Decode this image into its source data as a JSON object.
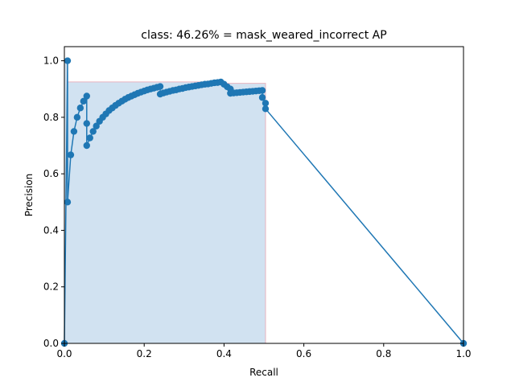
{
  "chart_data": {
    "type": "line",
    "title": "class: 46.26% = mask_weared_incorrect AP",
    "xlabel": "Recall",
    "ylabel": "Precision",
    "xlim": [
      0,
      1
    ],
    "ylim": [
      0,
      1.05
    ],
    "x_ticks": [
      "0.0",
      "0.2",
      "0.4",
      "0.6",
      "0.8",
      "1.0"
    ],
    "y_ticks": [
      "0.0",
      "0.2",
      "0.4",
      "0.6",
      "0.8",
      "1.0"
    ],
    "grid": false,
    "legend": "none",
    "colors": {
      "line": "#1f77b4",
      "fill": "#b9d3ea",
      "fill_edge": "#e8b4bf"
    },
    "series": [
      {
        "x": [
          0.0,
          0.008,
          0.008,
          0.016,
          0.024,
          0.032,
          0.04,
          0.048,
          0.056,
          0.056,
          0.056,
          0.064,
          0.072,
          0.08,
          0.088,
          0.096,
          0.104,
          0.112,
          0.12,
          0.128,
          0.136,
          0.144,
          0.152,
          0.16,
          0.168,
          0.176,
          0.184,
          0.192,
          0.2,
          0.208,
          0.216,
          0.224,
          0.232,
          0.24,
          0.24,
          0.248,
          0.256,
          0.264,
          0.272,
          0.28,
          0.288,
          0.296,
          0.304,
          0.312,
          0.32,
          0.328,
          0.336,
          0.344,
          0.352,
          0.36,
          0.368,
          0.376,
          0.384,
          0.392,
          0.4,
          0.408,
          0.416,
          0.416,
          0.424,
          0.432,
          0.44,
          0.448,
          0.456,
          0.464,
          0.472,
          0.48,
          0.488,
          0.496,
          0.496,
          0.504,
          0.504,
          1.0
        ],
        "y": [
          0.0,
          1.0,
          0.5,
          0.667,
          0.75,
          0.8,
          0.833,
          0.857,
          0.875,
          0.778,
          0.7,
          0.727,
          0.75,
          0.769,
          0.786,
          0.8,
          0.812,
          0.824,
          0.833,
          0.842,
          0.85,
          0.857,
          0.864,
          0.87,
          0.875,
          0.88,
          0.885,
          0.889,
          0.893,
          0.897,
          0.9,
          0.903,
          0.906,
          0.909,
          0.882,
          0.886,
          0.889,
          0.892,
          0.895,
          0.897,
          0.9,
          0.902,
          0.905,
          0.907,
          0.909,
          0.911,
          0.913,
          0.915,
          0.917,
          0.918,
          0.92,
          0.922,
          0.923,
          0.925,
          0.917,
          0.908,
          0.9,
          0.885,
          0.886,
          0.887,
          0.888,
          0.889,
          0.89,
          0.891,
          0.892,
          0.893,
          0.894,
          0.895,
          0.87,
          0.85,
          0.83,
          0.0
        ]
      }
    ],
    "area": {
      "x": [
        0.0,
        0.008,
        0.008,
        0.4,
        0.4,
        0.504,
        0.504
      ],
      "y": [
        1.0,
        1.0,
        0.925,
        0.925,
        0.92,
        0.92,
        0.0
      ]
    }
  }
}
